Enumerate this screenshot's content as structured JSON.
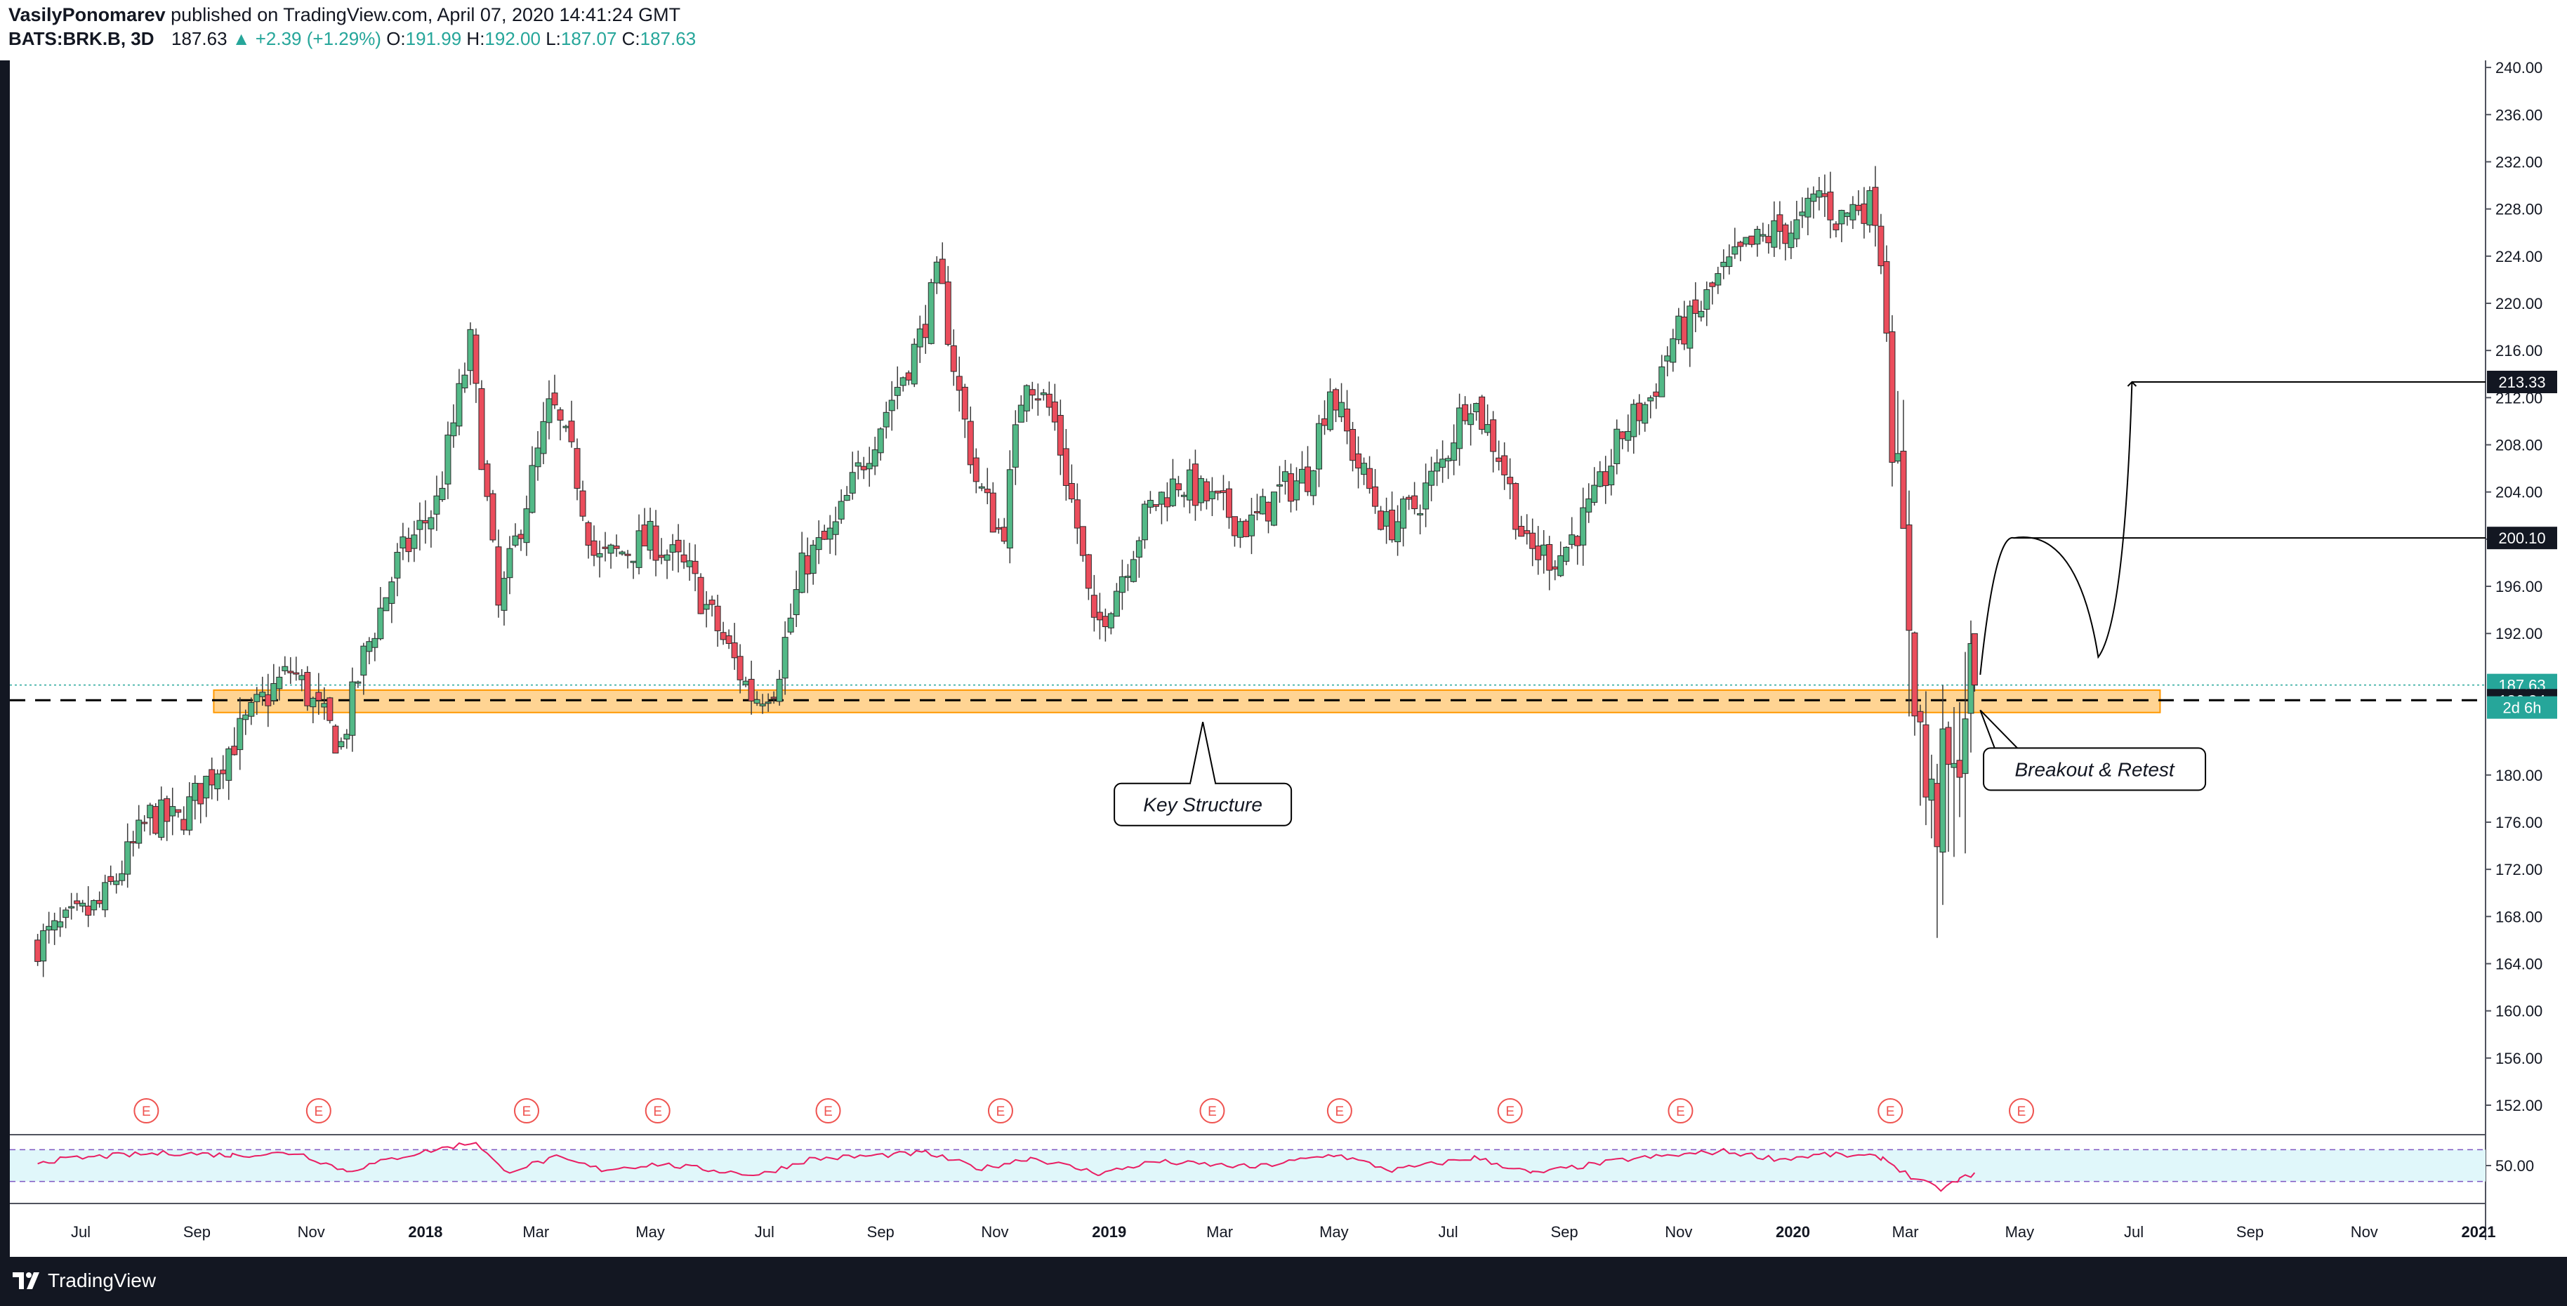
{
  "header": {
    "author": "VasilyPonomarev",
    "published": "published on TradingView.com, April 07, 2020 14:41:24 GMT",
    "symbol": "BATS:BRK.B, 3D",
    "last": "187.63",
    "change": "+2.39 (+1.29%)",
    "o_label": "O:",
    "o_value": "191.99",
    "h_label": "H:",
    "h_value": "192.00",
    "l_label": "L:",
    "l_value": "187.07",
    "c_label": "C:",
    "c_value": "187.63"
  },
  "footer": {
    "brand": "TradingView"
  },
  "colors": {
    "up": "#26a69a",
    "down": "#ef5350",
    "up_candle": "#53b987",
    "down_candle": "#eb4d5c",
    "zone_fill": "#ffcc80",
    "zone_stroke": "#ff9800",
    "rsi": "#e91e63",
    "rsi_bg": "#e0f7fa",
    "frame": "#131722"
  },
  "chart_data": {
    "type": "candlestick",
    "symbol": "BATS:BRK.B",
    "interval": "3D",
    "yaxis": {
      "ticks": [
        152,
        156,
        160,
        164,
        168,
        172,
        176,
        180,
        184,
        188,
        192,
        196,
        200,
        204,
        208,
        212,
        216,
        220,
        224,
        228,
        232,
        236,
        240
      ],
      "tick_labels": [
        "152.00",
        "156.00",
        "160.00",
        "164.00",
        "168.00",
        "172.00",
        "176.00",
        "180.00",
        "",
        "",
        "192.00",
        "196.00",
        "200.00",
        "204.00",
        "208.00",
        "212.00",
        "216.00",
        "220.00",
        "224.00",
        "228.00",
        "232.00",
        "236.00",
        "240.00"
      ],
      "ylim": [
        149.5,
        240.6
      ],
      "position": "right"
    },
    "xaxis": {
      "labels": [
        "Jul",
        "Sep",
        "Nov",
        "2018",
        "Mar",
        "May",
        "Jul",
        "Sep",
        "Nov",
        "2019",
        "Mar",
        "May",
        "Jul",
        "Sep",
        "Nov",
        "2020",
        "Mar",
        "May",
        "Jul",
        "Sep",
        "Nov",
        "2021"
      ],
      "dates": [
        "2017-07-01",
        "2017-09-01",
        "2017-11-01",
        "2018-01-01",
        "2018-03-01",
        "2018-05-01",
        "2018-07-01",
        "2018-09-01",
        "2018-11-01",
        "2019-01-01",
        "2019-03-01",
        "2019-05-01",
        "2019-07-01",
        "2019-09-01",
        "2019-11-01",
        "2020-01-01",
        "2020-03-01",
        "2020-05-01",
        "2020-07-01",
        "2020-09-01",
        "2020-11-01",
        "2021-01-01"
      ],
      "bold": [
        "2018",
        "2019",
        "2020",
        "2021"
      ]
    },
    "price_path": [
      [
        "2017-06-08",
        165.5
      ],
      [
        "2017-07-15",
        169.0
      ],
      [
        "2017-08-10",
        176.5
      ],
      [
        "2017-08-25",
        176.0
      ],
      [
        "2017-09-20",
        182.0
      ],
      [
        "2017-10-10",
        186.5
      ],
      [
        "2017-10-25",
        189.0
      ],
      [
        "2017-11-05",
        186.0
      ],
      [
        "2017-11-20",
        182.5
      ],
      [
        "2017-12-01",
        189.5
      ],
      [
        "2017-12-20",
        198.0
      ],
      [
        "2018-01-10",
        203.0
      ],
      [
        "2018-01-28",
        216.5
      ],
      [
        "2018-02-05",
        204.5
      ],
      [
        "2018-02-12",
        194.0
      ],
      [
        "2018-02-28",
        204.0
      ],
      [
        "2018-03-12",
        211.5
      ],
      [
        "2018-03-25",
        206.0
      ],
      [
        "2018-04-05",
        198.0
      ],
      [
        "2018-04-20",
        199.0
      ],
      [
        "2018-05-05",
        200.0
      ],
      [
        "2018-05-25",
        197.0
      ],
      [
        "2018-06-15",
        190.5
      ],
      [
        "2018-06-28",
        186.5
      ],
      [
        "2018-07-10",
        188.0
      ],
      [
        "2018-07-25",
        198.0
      ],
      [
        "2018-08-10",
        200.5
      ],
      [
        "2018-08-25",
        206.5
      ],
      [
        "2018-09-10",
        212.0
      ],
      [
        "2018-09-25",
        217.0
      ],
      [
        "2018-10-05",
        222.5
      ],
      [
        "2018-10-15",
        213.0
      ],
      [
        "2018-10-25",
        205.0
      ],
      [
        "2018-11-08",
        200.0
      ],
      [
        "2018-11-20",
        214.5
      ],
      [
        "2018-12-05",
        210.5
      ],
      [
        "2018-12-18",
        201.0
      ],
      [
        "2018-12-27",
        192.0
      ],
      [
        "2019-01-08",
        196.0
      ],
      [
        "2019-01-25",
        202.5
      ],
      [
        "2019-02-10",
        205.0
      ],
      [
        "2019-03-01",
        203.0
      ],
      [
        "2019-03-20",
        201.0
      ],
      [
        "2019-04-05",
        204.0
      ],
      [
        "2019-04-20",
        205.5
      ],
      [
        "2019-05-02",
        213.0
      ],
      [
        "2019-05-15",
        207.0
      ],
      [
        "2019-06-01",
        201.0
      ],
      [
        "2019-06-15",
        202.5
      ],
      [
        "2019-07-01",
        206.5
      ],
      [
        "2019-07-15",
        212.5
      ],
      [
        "2019-08-01",
        207.0
      ],
      [
        "2019-08-15",
        199.0
      ],
      [
        "2019-09-01",
        198.5
      ],
      [
        "2019-09-20",
        203.0
      ],
      [
        "2019-10-05",
        209.0
      ],
      [
        "2019-10-20",
        212.0
      ],
      [
        "2019-11-01",
        217.0
      ],
      [
        "2019-11-12",
        218.5
      ],
      [
        "2019-11-25",
        222.0
      ],
      [
        "2019-12-10",
        224.5
      ],
      [
        "2019-12-25",
        226.0
      ],
      [
        "2020-01-08",
        226.5
      ],
      [
        "2020-01-18",
        229.5
      ],
      [
        "2020-01-28",
        227.0
      ],
      [
        "2020-02-08",
        228.5
      ],
      [
        "2020-02-18",
        228.0
      ],
      [
        "2020-02-24",
        216.5
      ],
      [
        "2020-02-28",
        205.0
      ],
      [
        "2020-03-05",
        195.5
      ],
      [
        "2020-03-10",
        186.5
      ],
      [
        "2020-03-15",
        178.5
      ],
      [
        "2020-03-20",
        176.0
      ],
      [
        "2020-03-25",
        180.5
      ],
      [
        "2020-03-30",
        178.5
      ],
      [
        "2020-04-03",
        185.0
      ],
      [
        "2020-04-07",
        187.63
      ]
    ],
    "last_candle": {
      "date": "2020-04-07",
      "open": 191.99,
      "high": 192.0,
      "low": 187.07,
      "close": 187.63
    },
    "price_tags": [
      {
        "value": 213.33,
        "label": "213.33",
        "style": "dark"
      },
      {
        "value": 200.1,
        "label": "200.10",
        "style": "dark"
      },
      {
        "value": 187.63,
        "label": "187.63",
        "style": "teal"
      },
      {
        "value": 186.34,
        "label": "186.34",
        "style": "dark"
      }
    ],
    "countdown": "2d 6h",
    "key_level": 186.34,
    "support_zone": {
      "from": 185.3,
      "to": 187.2,
      "start": "2017-09-10",
      "end": "2020-07-15"
    },
    "projection": [
      [
        "2020-04-10",
        188.5
      ],
      [
        "2020-04-28",
        200.1
      ],
      [
        "2020-05-20",
        200.1
      ],
      [
        "2020-06-12",
        190.0
      ],
      [
        "2020-06-30",
        213.33
      ],
      [
        "2021-01-10",
        213.33
      ]
    ],
    "annotations": [
      {
        "text": "Key Structure",
        "date": "2019-02-20",
        "value": 177.5,
        "pointer_date": "2019-02-20",
        "pointer_value": 184.5
      },
      {
        "text": "Breakout & Retest",
        "date": "2020-06-10",
        "value": 180.5,
        "pointer_date": "2020-04-10",
        "pointer_value": 185.5
      }
    ],
    "earnings_markers": {
      "label": "E",
      "dates": [
        "2017-08-05",
        "2017-11-05",
        "2018-02-24",
        "2018-05-05",
        "2018-08-04",
        "2018-11-04",
        "2019-02-25",
        "2019-05-04",
        "2019-08-03",
        "2019-11-02",
        "2020-02-22",
        "2020-05-02"
      ]
    },
    "rsi": {
      "levels": [
        30,
        50,
        70
      ],
      "tick_label": "50.00",
      "ylim": [
        20,
        80
      ],
      "path": [
        [
          "2017-06-08",
          55
        ],
        [
          "2017-07-15",
          62
        ],
        [
          "2017-08-20",
          66
        ],
        [
          "2017-09-20",
          63
        ],
        [
          "2017-10-25",
          66
        ],
        [
          "2017-11-20",
          43
        ],
        [
          "2017-12-20",
          62
        ],
        [
          "2018-01-28",
          80
        ],
        [
          "2018-02-12",
          42
        ],
        [
          "2018-03-12",
          60
        ],
        [
          "2018-04-05",
          45
        ],
        [
          "2018-05-05",
          52
        ],
        [
          "2018-06-28",
          38
        ],
        [
          "2018-07-25",
          58
        ],
        [
          "2018-09-25",
          66
        ],
        [
          "2018-10-25",
          46
        ],
        [
          "2018-11-20",
          60
        ],
        [
          "2018-12-27",
          40
        ],
        [
          "2019-01-25",
          55
        ],
        [
          "2019-03-20",
          48
        ],
        [
          "2019-05-02",
          64
        ],
        [
          "2019-06-01",
          44
        ],
        [
          "2019-07-15",
          60
        ],
        [
          "2019-08-15",
          40
        ],
        [
          "2019-10-05",
          58
        ],
        [
          "2019-11-25",
          68
        ],
        [
          "2019-12-25",
          58
        ],
        [
          "2020-01-18",
          64
        ],
        [
          "2020-02-18",
          60
        ],
        [
          "2020-03-05",
          34
        ],
        [
          "2020-03-20",
          20
        ],
        [
          "2020-03-30",
          32
        ],
        [
          "2020-04-07",
          41
        ]
      ]
    }
  }
}
